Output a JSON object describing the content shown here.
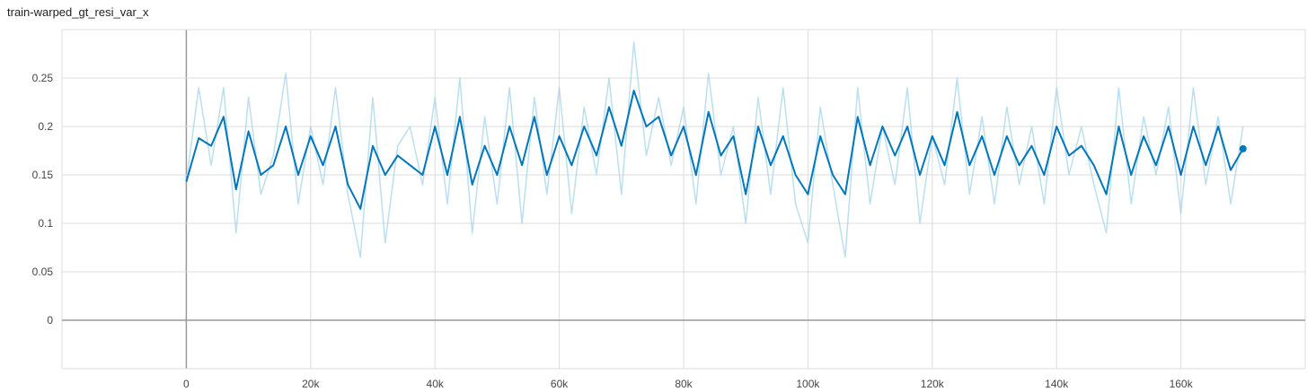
{
  "title": "train-warped_gt_resi_var_x",
  "colors": {
    "smoothed": "#0077bb",
    "raw": "#a6d4ea",
    "grid": "#dcdcdc",
    "axis": "#999999"
  },
  "chart_data": {
    "type": "line",
    "title": "train-warped_gt_resi_var_x",
    "xlabel": "",
    "ylabel": "",
    "xlim": [
      -20000,
      180000
    ],
    "ylim": [
      -0.05,
      0.3
    ],
    "x_ticks": [
      "0",
      "20k",
      "40k",
      "60k",
      "80k",
      "100k",
      "120k",
      "140k",
      "160k"
    ],
    "y_ticks": [
      "0",
      "0.05",
      "0.1",
      "0.15",
      "0.2",
      "0.25"
    ],
    "grid": true,
    "series": [
      {
        "kind": "raw",
        "x": [
          0,
          2000,
          4000,
          6000,
          8000,
          10000,
          12000,
          14000,
          16000,
          18000,
          20000,
          22000,
          24000,
          26000,
          28000,
          30000,
          32000,
          34000,
          36000,
          38000,
          40000,
          42000,
          44000,
          46000,
          48000,
          50000,
          52000,
          54000,
          56000,
          58000,
          60000,
          62000,
          64000,
          66000,
          68000,
          70000,
          72000,
          74000,
          76000,
          78000,
          80000,
          82000,
          84000,
          86000,
          88000,
          90000,
          92000,
          94000,
          96000,
          98000,
          100000,
          102000,
          104000,
          106000,
          108000,
          110000,
          112000,
          114000,
          116000,
          118000,
          120000,
          122000,
          124000,
          126000,
          128000,
          130000,
          132000,
          134000,
          136000,
          138000,
          140000,
          142000,
          144000,
          146000,
          148000,
          150000,
          152000,
          154000,
          156000,
          158000,
          160000,
          162000,
          164000,
          166000,
          168000,
          170000
        ],
        "y": [
          0.143,
          0.24,
          0.16,
          0.24,
          0.09,
          0.23,
          0.13,
          0.17,
          0.255,
          0.12,
          0.2,
          0.14,
          0.24,
          0.13,
          0.065,
          0.23,
          0.08,
          0.18,
          0.2,
          0.14,
          0.23,
          0.12,
          0.25,
          0.09,
          0.21,
          0.12,
          0.24,
          0.1,
          0.23,
          0.13,
          0.24,
          0.11,
          0.22,
          0.15,
          0.25,
          0.13,
          0.287,
          0.17,
          0.23,
          0.16,
          0.22,
          0.12,
          0.255,
          0.15,
          0.2,
          0.1,
          0.23,
          0.13,
          0.24,
          0.12,
          0.08,
          0.22,
          0.14,
          0.065,
          0.24,
          0.12,
          0.2,
          0.14,
          0.24,
          0.1,
          0.19,
          0.14,
          0.25,
          0.13,
          0.21,
          0.12,
          0.22,
          0.14,
          0.2,
          0.12,
          0.24,
          0.15,
          0.2,
          0.14,
          0.09,
          0.24,
          0.12,
          0.21,
          0.15,
          0.22,
          0.11,
          0.24,
          0.14,
          0.21,
          0.12,
          0.2
        ]
      },
      {
        "kind": "smoothed",
        "x": [
          0,
          2000,
          4000,
          6000,
          8000,
          10000,
          12000,
          14000,
          16000,
          18000,
          20000,
          22000,
          24000,
          26000,
          28000,
          30000,
          32000,
          34000,
          36000,
          38000,
          40000,
          42000,
          44000,
          46000,
          48000,
          50000,
          52000,
          54000,
          56000,
          58000,
          60000,
          62000,
          64000,
          66000,
          68000,
          70000,
          72000,
          74000,
          76000,
          78000,
          80000,
          82000,
          84000,
          86000,
          88000,
          90000,
          92000,
          94000,
          96000,
          98000,
          100000,
          102000,
          104000,
          106000,
          108000,
          110000,
          112000,
          114000,
          116000,
          118000,
          120000,
          122000,
          124000,
          126000,
          128000,
          130000,
          132000,
          134000,
          136000,
          138000,
          140000,
          142000,
          144000,
          146000,
          148000,
          150000,
          152000,
          154000,
          156000,
          158000,
          160000,
          162000,
          164000,
          166000,
          168000,
          170000
        ],
        "y": [
          0.143,
          0.188,
          0.18,
          0.21,
          0.135,
          0.195,
          0.15,
          0.16,
          0.2,
          0.15,
          0.19,
          0.16,
          0.2,
          0.14,
          0.115,
          0.18,
          0.15,
          0.17,
          0.16,
          0.15,
          0.2,
          0.15,
          0.21,
          0.14,
          0.18,
          0.15,
          0.2,
          0.16,
          0.21,
          0.15,
          0.19,
          0.16,
          0.2,
          0.17,
          0.22,
          0.18,
          0.237,
          0.2,
          0.21,
          0.17,
          0.2,
          0.15,
          0.215,
          0.17,
          0.19,
          0.13,
          0.2,
          0.16,
          0.19,
          0.15,
          0.13,
          0.19,
          0.15,
          0.13,
          0.21,
          0.16,
          0.2,
          0.17,
          0.2,
          0.15,
          0.19,
          0.16,
          0.215,
          0.16,
          0.19,
          0.15,
          0.19,
          0.16,
          0.18,
          0.15,
          0.2,
          0.17,
          0.18,
          0.16,
          0.13,
          0.2,
          0.15,
          0.19,
          0.16,
          0.2,
          0.15,
          0.2,
          0.16,
          0.2,
          0.155,
          0.177
        ]
      }
    ]
  }
}
